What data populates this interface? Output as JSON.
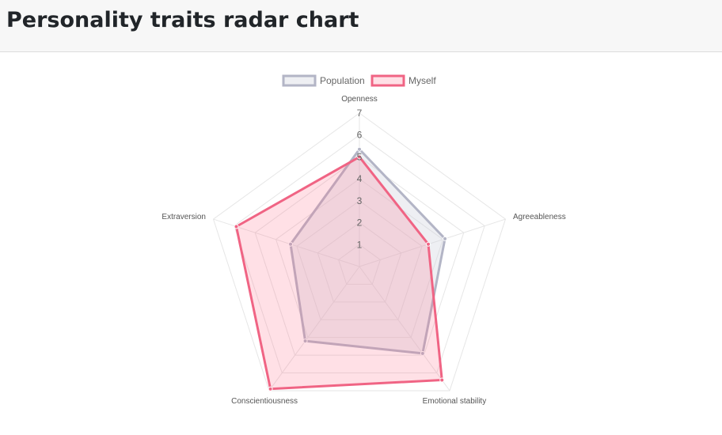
{
  "page": {
    "title": "Personality traits radar chart"
  },
  "chart_data": {
    "type": "radar",
    "categories": [
      "Openness",
      "Agreeableness",
      "Emotional stability",
      "Conscientiousness",
      "Extraversion"
    ],
    "r_ticks": [
      "1",
      "2",
      "3",
      "4",
      "5",
      "6",
      "7"
    ],
    "rlim": [
      0,
      7
    ],
    "legend_position": "top",
    "series": [
      {
        "name": "Population",
        "values": [
          5.35,
          4.1,
          4.9,
          4.2,
          3.3
        ],
        "border_color": "#b3b5c6",
        "fill_color": "rgba(205,208,222,0.35)"
      },
      {
        "name": "Myself",
        "values": [
          5.0,
          3.3,
          6.4,
          6.9,
          5.9
        ],
        "border_color": "#f06484",
        "fill_color": "rgba(255,99,132,0.2)"
      }
    ]
  }
}
